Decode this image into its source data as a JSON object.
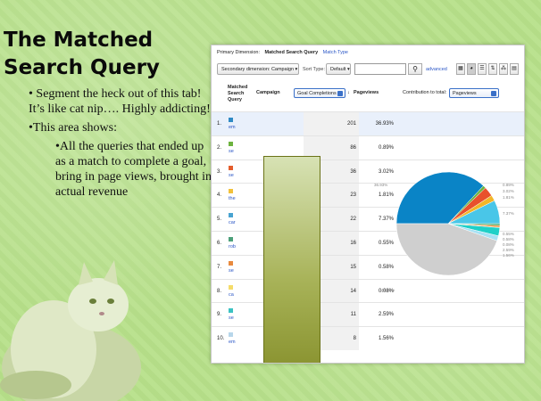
{
  "slide": {
    "title": "The Matched Search Query",
    "bullet1": "• Segment the heck out of this tab! It’s like cat nip…. Highly addicting!",
    "bullet2": "•This area shows:",
    "bullet3": "•All the queries that ended up as a match to complete a goal, bring in page views, brought in actual revenue"
  },
  "report": {
    "dimension_label": "Primary Dimension:",
    "dimension_active": "Matched Search Query",
    "dimension_link": "Match Type",
    "secondary_dimension": "Secondary dimension: Campaign",
    "sort_type_label": "Sort Type:",
    "sort_type_value": "Default",
    "search_icon": "search-icon",
    "advanced_link": "advanced",
    "col_query": "Matched Search Query",
    "col_campaign": "Campaign",
    "goal_select": "Goal Completions",
    "col_pageviews": "Pageviews",
    "contribution_label": "Contribution to total:",
    "contribution_select": "Pageviews",
    "rows": [
      {
        "num": "1.",
        "q": "em",
        "pv": "201",
        "pct": "36.93%",
        "color": "#2f8ac4"
      },
      {
        "num": "2.",
        "q": "se",
        "pv": "86",
        "pct": "0.89%",
        "color": "#6db33f"
      },
      {
        "num": "3.",
        "q": "se",
        "pv": "36",
        "pct": "3.02%",
        "color": "#e45d2c"
      },
      {
        "num": "4.",
        "q": "the",
        "pv": "23",
        "pct": "1.81%",
        "color": "#f2c13a"
      },
      {
        "num": "5.",
        "q": "car",
        "pv": "22",
        "pct": "7.37%",
        "color": "#49a3d1"
      },
      {
        "num": "6.",
        "q": "rob",
        "pv": "16",
        "pct": "0.55%",
        "color": "#4ca07a"
      },
      {
        "num": "7.",
        "q": "se",
        "pv": "15",
        "pct": "0.58%",
        "color": "#e88a3e"
      },
      {
        "num": "8.",
        "q": "ca",
        "pv": "14",
        "pct": "0.08%",
        "color": "#f5dc6a"
      },
      {
        "num": "9.",
        "q": "se",
        "pv": "11",
        "pct": "2.59%",
        "color": "#3bc2c2"
      },
      {
        "num": "10.",
        "q": "em",
        "pv": "8",
        "pct": "1.56%",
        "color": "#b7d6ea"
      }
    ],
    "pie_labels": {
      "big": "36.93%",
      "other": "44.62%",
      "l1": "0.89%",
      "l2": "3.02%",
      "l3": "1.81%",
      "l4": "7.37%",
      "l5": "0.55%",
      "l6": "0.58%",
      "l7": "0.08%",
      "l8": "2.59%",
      "l9": "1.56%"
    }
  },
  "chart_data": {
    "type": "pie",
    "values": [
      36.93,
      0.89,
      3.02,
      1.81,
      7.37,
      0.55,
      0.58,
      0.08,
      2.59,
      1.56,
      44.62
    ],
    "colors": [
      "#0a84c6",
      "#6db33f",
      "#e8512c",
      "#f2b628",
      "#49c6e8",
      "#2e9a52",
      "#f28a2f",
      "#f0e060",
      "#1fd0c8",
      "#a7e1f4",
      "#cfcfcf"
    ]
  }
}
